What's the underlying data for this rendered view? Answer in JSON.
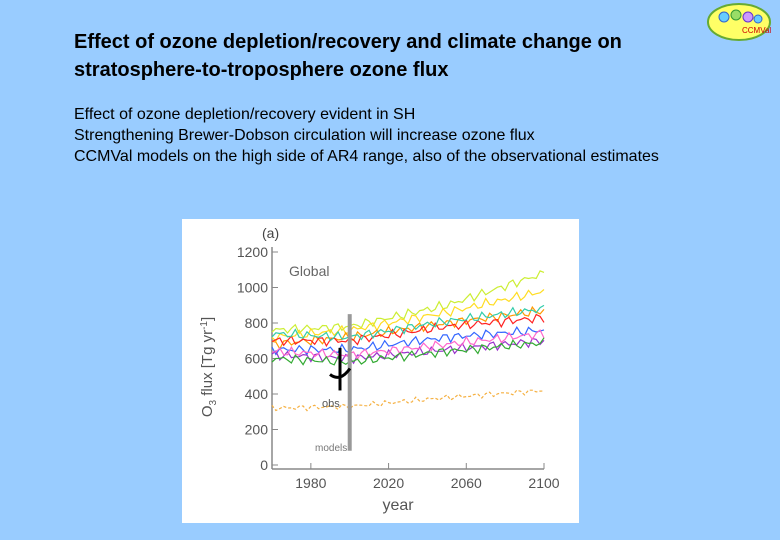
{
  "slide": {
    "title_lines": [
      "Effect of ozone depletion/recovery and climate change on",
      "stratosphere-to-troposphere ozone flux"
    ],
    "bullets": [
      "Effect of ozone depletion/recovery evident in SH",
      "Strengthening Brewer-Dobson circulation will increase ozone flux",
      "CCMVal models on the high side of AR4 range, also of the observational estimates"
    ],
    "logo_text": "CCMVal"
  },
  "colors": {
    "background": "#99ccff",
    "grey_bar": "#999999"
  },
  "chart_data": {
    "type": "line",
    "panel_label": "(a)",
    "region_label": "Global",
    "ylabel": "O3 flux [Tg yr-1]",
    "xlabel": "year",
    "xlim": [
      1960,
      2100
    ],
    "ylim": [
      0,
      1200
    ],
    "xticks": [
      1980,
      2020,
      2060,
      2100
    ],
    "yticks": [
      0,
      200,
      400,
      600,
      800,
      1000,
      1200
    ],
    "annotations": {
      "obs": "obs",
      "models": "models"
    },
    "models_range": {
      "x": 2000,
      "ymin": 80,
      "ymax": 850
    },
    "obs_range": {
      "x": 1995,
      "ymin": 420,
      "ymax": 660,
      "center": 510
    },
    "series": [
      {
        "name": "model-1",
        "color": "#ccee33",
        "x": [
          1960,
          2000,
          2050,
          2100
        ],
        "values": [
          760,
          780,
          900,
          1080
        ]
      },
      {
        "name": "model-2",
        "color": "#ffdd22",
        "x": [
          1960,
          2000,
          2050,
          2100
        ],
        "values": [
          720,
          760,
          860,
          980
        ]
      },
      {
        "name": "model-3",
        "color": "#ff9900",
        "x": [
          1960,
          2000,
          2050,
          2100
        ],
        "values": [
          680,
          720,
          800,
          870
        ]
      },
      {
        "name": "model-4",
        "color": "#ff2222",
        "x": [
          1960,
          2000,
          2050,
          2100
        ],
        "values": [
          700,
          700,
          780,
          830
        ]
      },
      {
        "name": "model-5",
        "color": "#33ccaa",
        "x": [
          1960,
          2000,
          2050,
          2100
        ],
        "values": [
          740,
          720,
          810,
          880
        ]
      },
      {
        "name": "model-6",
        "color": "#3366ff",
        "x": [
          1960,
          2000,
          2050,
          2100
        ],
        "values": [
          650,
          650,
          720,
          760
        ]
      },
      {
        "name": "model-7",
        "color": "#9933cc",
        "x": [
          1960,
          2000,
          2050,
          2100
        ],
        "values": [
          620,
          600,
          650,
          700
        ]
      },
      {
        "name": "model-8",
        "color": "#ff66cc",
        "x": [
          1960,
          2000,
          2050,
          2100
        ],
        "values": [
          640,
          620,
          680,
          740
        ]
      },
      {
        "name": "model-9",
        "color": "#33aa33",
        "x": [
          1960,
          2000,
          2050,
          2100
        ],
        "values": [
          600,
          580,
          640,
          690
        ]
      },
      {
        "name": "AR4-low",
        "color": "#f5b041",
        "dashed": true,
        "x": [
          1960,
          2000,
          2050,
          2100
        ],
        "values": [
          320,
          330,
          380,
          420
        ]
      }
    ]
  }
}
